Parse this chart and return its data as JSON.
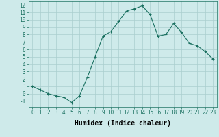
{
  "title": "",
  "xlabel": "Humidex (Indice chaleur)",
  "ylabel": "",
  "x": [
    0,
    1,
    2,
    3,
    4,
    5,
    6,
    7,
    8,
    9,
    10,
    11,
    12,
    13,
    14,
    15,
    16,
    17,
    18,
    19,
    20,
    21,
    22,
    23
  ],
  "y": [
    1,
    0.5,
    0,
    -0.3,
    -0.5,
    -1.2,
    -0.3,
    2.2,
    5.0,
    7.8,
    8.4,
    9.8,
    11.2,
    11.5,
    11.9,
    10.7,
    7.8,
    8.0,
    9.5,
    8.3,
    6.8,
    6.5,
    5.7,
    4.7
  ],
  "line_color": "#1a7060",
  "marker": "+",
  "marker_size": 3,
  "bg_color": "#ceeaea",
  "grid_color": "#aacece",
  "ylim": [
    -1.8,
    12.5
  ],
  "xlim": [
    -0.5,
    23.5
  ],
  "yticks": [
    -1,
    0,
    1,
    2,
    3,
    4,
    5,
    6,
    7,
    8,
    9,
    10,
    11,
    12
  ],
  "xticks": [
    0,
    1,
    2,
    3,
    4,
    5,
    6,
    7,
    8,
    9,
    10,
    11,
    12,
    13,
    14,
    15,
    16,
    17,
    18,
    19,
    20,
    21,
    22,
    23
  ],
  "axis_fontsize": 6.5,
  "tick_fontsize": 5.5,
  "xlabel_fontsize": 7
}
